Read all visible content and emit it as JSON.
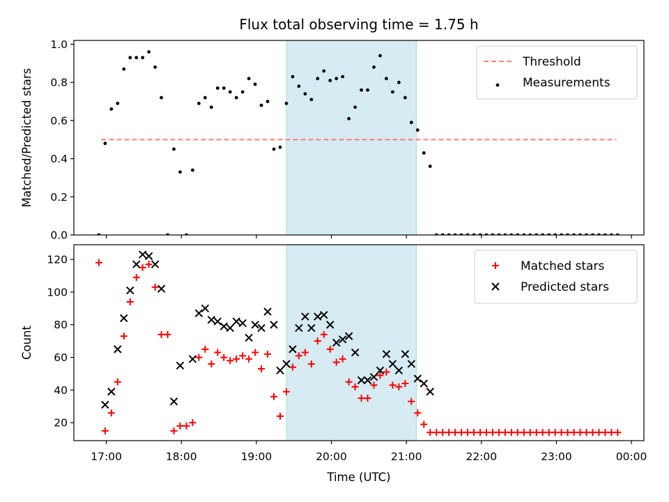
{
  "chart_data": [
    {
      "type": "scatter",
      "title": "Flux total observing time = 1.75 h",
      "ylabel": "Matched/Predicted stars",
      "xlabel": "",
      "xlim": [
        "16:34",
        "00:10"
      ],
      "ylim": [
        0,
        1.02
      ],
      "x_ticks": [
        "17:00",
        "18:00",
        "19:00",
        "20:00",
        "21:00",
        "22:00",
        "23:00",
        "00:00"
      ],
      "y_ticks": [
        "0.0",
        "0.2",
        "0.4",
        "0.6",
        "0.8",
        "1.0"
      ],
      "y_tick_values": [
        0,
        0.2,
        0.4,
        0.6,
        0.8,
        1.0
      ],
      "shaded_interval": [
        "19:24",
        "21:08"
      ],
      "shaded_color": "#add8e6",
      "legend_position": "upper right",
      "threshold": {
        "name": "Threshold",
        "value": 0.5,
        "x_range": [
          "16:56",
          "23:48"
        ],
        "color": "#ff7f7f",
        "style": "dashed"
      },
      "series": [
        {
          "name": "Measurements",
          "marker": "dot",
          "color": "#000000",
          "points": [
            [
              "16:54",
              0.0
            ],
            [
              "16:59",
              0.48
            ],
            [
              "17:04",
              0.66
            ],
            [
              "17:09",
              0.69
            ],
            [
              "17:14",
              0.87
            ],
            [
              "17:19",
              0.93
            ],
            [
              "17:24",
              0.93
            ],
            [
              "17:29",
              0.93
            ],
            [
              "17:34",
              0.96
            ],
            [
              "17:39",
              0.88
            ],
            [
              "17:44",
              0.72
            ],
            [
              "17:49",
              0.0
            ],
            [
              "17:54",
              0.45
            ],
            [
              "17:59",
              0.33
            ],
            [
              "18:04",
              0.0
            ],
            [
              "18:09",
              0.34
            ],
            [
              "18:14",
              0.69
            ],
            [
              "18:19",
              0.72
            ],
            [
              "18:24",
              0.67
            ],
            [
              "18:29",
              0.77
            ],
            [
              "18:34",
              0.77
            ],
            [
              "18:39",
              0.75
            ],
            [
              "18:44",
              0.72
            ],
            [
              "18:49",
              0.75
            ],
            [
              "18:54",
              0.82
            ],
            [
              "18:59",
              0.79
            ],
            [
              "19:04",
              0.68
            ],
            [
              "19:09",
              0.7
            ],
            [
              "19:14",
              0.45
            ],
            [
              "19:19",
              0.46
            ],
            [
              "19:24",
              0.69
            ],
            [
              "19:29",
              0.83
            ],
            [
              "19:34",
              0.78
            ],
            [
              "19:39",
              0.74
            ],
            [
              "19:44",
              0.71
            ],
            [
              "19:49",
              0.82
            ],
            [
              "19:54",
              0.86
            ],
            [
              "19:59",
              0.81
            ],
            [
              "20:04",
              0.82
            ],
            [
              "20:09",
              0.83
            ],
            [
              "20:14",
              0.61
            ],
            [
              "20:19",
              0.67
            ],
            [
              "20:24",
              0.76
            ],
            [
              "20:29",
              0.76
            ],
            [
              "20:34",
              0.88
            ],
            [
              "20:39",
              0.94
            ],
            [
              "20:44",
              0.82
            ],
            [
              "20:49",
              0.75
            ],
            [
              "20:54",
              0.8
            ],
            [
              "20:59",
              0.72
            ],
            [
              "21:04",
              0.59
            ],
            [
              "21:09",
              0.55
            ],
            [
              "21:14",
              0.43
            ],
            [
              "21:19",
              0.36
            ],
            [
              "21:24",
              0.0
            ],
            [
              "21:29",
              0.0
            ],
            [
              "21:34",
              0.0
            ],
            [
              "21:39",
              0.0
            ],
            [
              "21:44",
              0.0
            ],
            [
              "21:49",
              0.0
            ],
            [
              "21:54",
              0.0
            ],
            [
              "21:59",
              0.0
            ],
            [
              "22:04",
              0.0
            ],
            [
              "22:09",
              0.0
            ],
            [
              "22:14",
              0.0
            ],
            [
              "22:19",
              0.0
            ],
            [
              "22:24",
              0.0
            ],
            [
              "22:29",
              0.0
            ],
            [
              "22:34",
              0.0
            ],
            [
              "22:39",
              0.0
            ],
            [
              "22:44",
              0.0
            ],
            [
              "22:49",
              0.0
            ],
            [
              "22:54",
              0.0
            ],
            [
              "22:59",
              0.0
            ],
            [
              "23:04",
              0.0
            ],
            [
              "23:09",
              0.0
            ],
            [
              "23:14",
              0.0
            ],
            [
              "23:19",
              0.0
            ],
            [
              "23:24",
              0.0
            ],
            [
              "23:29",
              0.0
            ],
            [
              "23:34",
              0.0
            ],
            [
              "23:39",
              0.0
            ],
            [
              "23:44",
              0.0
            ],
            [
              "23:49",
              0.0
            ]
          ]
        }
      ]
    },
    {
      "type": "scatter",
      "title": "",
      "ylabel": "Count",
      "xlabel": "Time (UTC)",
      "xlim": [
        "16:34",
        "00:10"
      ],
      "ylim": [
        9,
        129
      ],
      "x_ticks": [
        "17:00",
        "18:00",
        "19:00",
        "20:00",
        "21:00",
        "22:00",
        "23:00",
        "00:00"
      ],
      "y_ticks": [
        "20",
        "40",
        "60",
        "80",
        "100",
        "120"
      ],
      "y_tick_values": [
        20,
        40,
        60,
        80,
        100,
        120
      ],
      "shaded_interval": [
        "19:24",
        "21:08"
      ],
      "shaded_color": "#add8e6",
      "legend_position": "upper right",
      "series": [
        {
          "name": "Matched stars",
          "marker": "plus",
          "color": "#ff0000",
          "points": [
            [
              "16:54",
              118
            ],
            [
              "16:59",
              15
            ],
            [
              "17:04",
              26
            ],
            [
              "17:09",
              45
            ],
            [
              "17:14",
              73
            ],
            [
              "17:19",
              94
            ],
            [
              "17:24",
              109
            ],
            [
              "17:29",
              115
            ],
            [
              "17:34",
              117
            ],
            [
              "17:39",
              103
            ],
            [
              "17:44",
              74
            ],
            [
              "17:49",
              74
            ],
            [
              "17:54",
              15
            ],
            [
              "17:59",
              18
            ],
            [
              "18:04",
              18
            ],
            [
              "18:09",
              20
            ],
            [
              "18:14",
              60
            ],
            [
              "18:19",
              65
            ],
            [
              "18:24",
              56
            ],
            [
              "18:29",
              63
            ],
            [
              "18:34",
              60
            ],
            [
              "18:39",
              58
            ],
            [
              "18:44",
              59
            ],
            [
              "18:49",
              61
            ],
            [
              "18:54",
              59
            ],
            [
              "18:59",
              63
            ],
            [
              "19:04",
              53
            ],
            [
              "19:09",
              62
            ],
            [
              "19:14",
              36
            ],
            [
              "19:19",
              24
            ],
            [
              "19:24",
              39
            ],
            [
              "19:29",
              54
            ],
            [
              "19:34",
              61
            ],
            [
              "19:39",
              63
            ],
            [
              "19:44",
              56
            ],
            [
              "19:49",
              70
            ],
            [
              "19:54",
              74
            ],
            [
              "19:59",
              65
            ],
            [
              "20:04",
              57
            ],
            [
              "20:09",
              59
            ],
            [
              "20:14",
              45
            ],
            [
              "20:19",
              42
            ],
            [
              "20:24",
              35
            ],
            [
              "20:29",
              35
            ],
            [
              "20:34",
              43
            ],
            [
              "20:39",
              49
            ],
            [
              "20:44",
              51
            ],
            [
              "20:49",
              43
            ],
            [
              "20:54",
              42
            ],
            [
              "20:59",
              44
            ],
            [
              "21:04",
              33
            ],
            [
              "21:09",
              26
            ],
            [
              "21:14",
              19
            ],
            [
              "21:19",
              14
            ],
            [
              "21:24",
              14
            ],
            [
              "21:29",
              14
            ],
            [
              "21:34",
              14
            ],
            [
              "21:39",
              14
            ],
            [
              "21:44",
              14
            ],
            [
              "21:49",
              14
            ],
            [
              "21:54",
              14
            ],
            [
              "21:59",
              14
            ],
            [
              "22:04",
              14
            ],
            [
              "22:09",
              14
            ],
            [
              "22:14",
              14
            ],
            [
              "22:19",
              14
            ],
            [
              "22:24",
              14
            ],
            [
              "22:29",
              14
            ],
            [
              "22:34",
              14
            ],
            [
              "22:39",
              14
            ],
            [
              "22:44",
              14
            ],
            [
              "22:49",
              14
            ],
            [
              "22:54",
              14
            ],
            [
              "22:59",
              14
            ],
            [
              "23:04",
              14
            ],
            [
              "23:09",
              14
            ],
            [
              "23:14",
              14
            ],
            [
              "23:19",
              14
            ],
            [
              "23:24",
              14
            ],
            [
              "23:29",
              14
            ],
            [
              "23:34",
              14
            ],
            [
              "23:39",
              14
            ],
            [
              "23:44",
              14
            ],
            [
              "23:49",
              14
            ]
          ]
        },
        {
          "name": "Predicted stars",
          "marker": "x",
          "color": "#000000",
          "points": [
            [
              "16:59",
              31
            ],
            [
              "17:04",
              39
            ],
            [
              "17:09",
              65
            ],
            [
              "17:14",
              84
            ],
            [
              "17:19",
              101
            ],
            [
              "17:24",
              117
            ],
            [
              "17:29",
              123
            ],
            [
              "17:34",
              122
            ],
            [
              "17:39",
              117
            ],
            [
              "17:44",
              102
            ],
            [
              "17:54",
              33
            ],
            [
              "17:59",
              55
            ],
            [
              "18:09",
              59
            ],
            [
              "18:14",
              87
            ],
            [
              "18:19",
              90
            ],
            [
              "18:24",
              83
            ],
            [
              "18:29",
              82
            ],
            [
              "18:34",
              79
            ],
            [
              "18:39",
              78
            ],
            [
              "18:44",
              82
            ],
            [
              "18:49",
              81
            ],
            [
              "18:54",
              72
            ],
            [
              "18:59",
              80
            ],
            [
              "19:04",
              78
            ],
            [
              "19:09",
              88
            ],
            [
              "19:14",
              80
            ],
            [
              "19:19",
              52
            ],
            [
              "19:24",
              56
            ],
            [
              "19:29",
              65
            ],
            [
              "19:34",
              78
            ],
            [
              "19:39",
              85
            ],
            [
              "19:44",
              78
            ],
            [
              "19:49",
              85
            ],
            [
              "19:54",
              86
            ],
            [
              "19:59",
              80
            ],
            [
              "20:04",
              69
            ],
            [
              "20:09",
              71
            ],
            [
              "20:14",
              73
            ],
            [
              "20:19",
              63
            ],
            [
              "20:24",
              46
            ],
            [
              "20:29",
              46
            ],
            [
              "20:34",
              48
            ],
            [
              "20:39",
              52
            ],
            [
              "20:44",
              62
            ],
            [
              "20:49",
              56
            ],
            [
              "20:54",
              52
            ],
            [
              "20:59",
              62
            ],
            [
              "21:04",
              56
            ],
            [
              "21:09",
              47
            ],
            [
              "21:14",
              44
            ],
            [
              "21:19",
              39
            ]
          ]
        }
      ]
    }
  ]
}
